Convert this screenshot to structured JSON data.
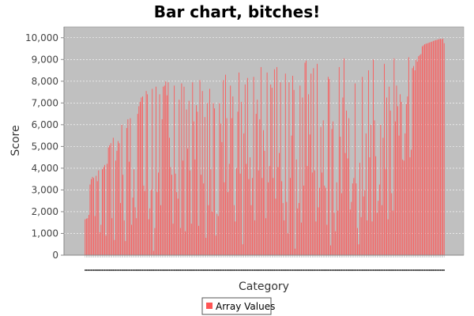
{
  "chart_data": {
    "type": "bar",
    "title": "Bar chart, bitches!",
    "xlabel": "Category",
    "ylabel": "Score",
    "ylim": [
      0,
      10500
    ],
    "yticks": [
      "0",
      "1,000",
      "2,000",
      "3,000",
      "4,000",
      "5,000",
      "6,000",
      "7,000",
      "8,000",
      "9,000",
      "10,000"
    ],
    "legend": "bottom",
    "grid": true,
    "series": [
      {
        "name": "Array Values",
        "color": "#ff5555",
        "values": [
          1650,
          1680,
          1700,
          1850,
          3250,
          3500,
          3600,
          3550,
          1800,
          3650,
          3400,
          3900,
          1050,
          1400,
          3950,
          4050,
          4150,
          900,
          4200,
          4950,
          5050,
          5150,
          1700,
          5400,
          700,
          4350,
          4800,
          5250,
          5150,
          2400,
          6000,
          3700,
          1600,
          650,
          5850,
          6250,
          4300,
          6300,
          1400,
          2650,
          3950,
          2200,
          1700,
          6500,
          6850,
          7050,
          7250,
          7300,
          3200,
          2950,
          7550,
          7400,
          1650,
          2150,
          3000,
          7650,
          200,
          1250,
          7750,
          2900,
          3800,
          7400,
          2300,
          6250,
          7750,
          7800,
          8000,
          7350,
          7950,
          5400,
          4050,
          3700,
          1450,
          7800,
          3750,
          2900,
          2600,
          7150,
          1250,
          7900,
          4350,
          7750,
          1100,
          6700,
          4900,
          7100,
          3900,
          1450,
          7950,
          6150,
          4400,
          6900,
          6600,
          1350,
          8050,
          3700,
          7550,
          3300,
          6350,
          800,
          7000,
          2300,
          7650,
          3950,
          2000,
          7000,
          6750,
          900,
          1900,
          1800,
          7000,
          6050,
          5200,
          8050,
          3350,
          8300,
          6300,
          2900,
          4200,
          7800,
          6300,
          7300,
          2300,
          1550,
          4000,
          6600,
          8400,
          3750,
          7050,
          500,
          5600,
          7850,
          4200,
          8150,
          3500,
          4500,
          2300,
          3550,
          8200,
          1600,
          6500,
          7150,
          3900,
          6250,
          8650,
          3550,
          5750,
          4800,
          1700,
          8400,
          3350,
          4100,
          7850,
          7700,
          3550,
          8550,
          2600,
          8650,
          4050,
          4700,
          7950,
          3400,
          2400,
          1600,
          8350,
          2450,
          1000,
          7950,
          3550,
          5500,
          8250,
          7600,
          300,
          4400,
          2150,
          2400,
          7800,
          1500,
          7250,
          3200,
          8850,
          8950,
          4100,
          7400,
          5550,
          8350,
          3800,
          8600,
          3900,
          1550,
          8800,
          2200,
          3100,
          5900,
          3800,
          6200,
          3200,
          3100,
          1400,
          8200,
          8100,
          450,
          5800,
          6150,
          1950,
          1100,
          3350,
          2050,
          8650,
          5450,
          2850,
          7250,
          9050,
          4700,
          6650,
          4450,
          6300,
          2100,
          2450,
          3300,
          3550,
          7900,
          3300,
          1250,
          500,
          4250,
          1750,
          8200,
          2700,
          3000,
          5600,
          1600,
          8500,
          4500,
          6000,
          1550,
          9000,
          6200,
          4550,
          1950,
          2500,
          3250,
          6000,
          2300,
          5400,
          8800,
          3950,
          7250,
          1650,
          7750,
          6650,
          2850,
          2050,
          9050,
          6150,
          7800,
          6850,
          5500,
          7400,
          7050,
          4400,
          4350,
          5600,
          6950,
          7300,
          9100,
          4500,
          4850,
          8600,
          8700,
          8500,
          9000,
          8900,
          9150,
          9200,
          9250,
          9600,
          9650,
          9700,
          9720,
          9740,
          9760,
          9780,
          9800,
          9820,
          9850,
          9870,
          9890,
          9900,
          9920,
          9940,
          9950,
          9930,
          9960,
          9750
        ]
      }
    ]
  }
}
